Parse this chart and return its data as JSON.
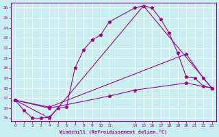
{
  "xlabel": "Windchill (Refroidissement éolien,°C)",
  "background_color": "#c8eef0",
  "line_color": "#990099",
  "grid_color": "#ffffff",
  "xlim": [
    -0.5,
    23.5
  ],
  "ylim": [
    14.7,
    26.5
  ],
  "xtick_positions": [
    0,
    1,
    2,
    3,
    4,
    5,
    6,
    7,
    8,
    9,
    10,
    11,
    14,
    15,
    16,
    17,
    18,
    19,
    20,
    21,
    22,
    23
  ],
  "xtick_labels": [
    "0",
    "1",
    "2",
    "3",
    "4",
    "5",
    "6",
    "7",
    "8",
    "9",
    "10",
    "11",
    "14",
    "15",
    "16",
    "17",
    "18",
    "19",
    "20",
    "21",
    "22",
    "23"
  ],
  "yticks": [
    15,
    16,
    17,
    18,
    19,
    20,
    21,
    22,
    23,
    24,
    25,
    26
  ],
  "line1": [
    [
      0,
      16.8
    ],
    [
      1,
      15.8
    ],
    [
      2,
      15.0
    ],
    [
      3,
      15.0
    ],
    [
      4,
      15.1
    ],
    [
      5,
      16.0
    ],
    [
      6,
      16.1
    ],
    [
      7,
      20.0
    ],
    [
      8,
      21.8
    ],
    [
      9,
      22.8
    ],
    [
      10,
      23.3
    ],
    [
      11,
      24.6
    ],
    [
      14,
      26.0
    ],
    [
      15,
      26.2
    ],
    [
      16,
      26.0
    ],
    [
      17,
      24.9
    ],
    [
      18,
      23.5
    ],
    [
      19,
      21.5
    ],
    [
      20,
      19.1
    ],
    [
      21,
      19.0
    ],
    [
      22,
      18.2
    ],
    [
      23,
      18.0
    ]
  ],
  "line2": [
    [
      0,
      16.8
    ],
    [
      4,
      15.0
    ],
    [
      15,
      26.2
    ],
    [
      23,
      18.0
    ]
  ],
  "line3": [
    [
      0,
      16.8
    ],
    [
      4,
      16.1
    ],
    [
      20,
      21.4
    ],
    [
      22,
      19.0
    ],
    [
      23,
      18.0
    ]
  ],
  "line4": [
    [
      0,
      16.8
    ],
    [
      4,
      16.0
    ],
    [
      11,
      17.2
    ],
    [
      14,
      17.8
    ],
    [
      20,
      18.5
    ],
    [
      23,
      18.0
    ]
  ]
}
